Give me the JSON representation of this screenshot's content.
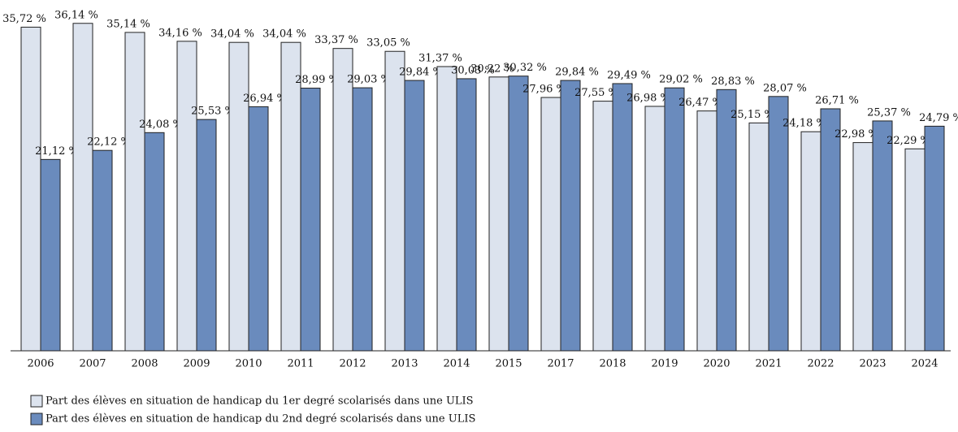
{
  "chart_data": {
    "type": "bar",
    "categories": [
      "2006",
      "2007",
      "2008",
      "2009",
      "2010",
      "2011",
      "2012",
      "2013",
      "2014",
      "2015",
      "2017",
      "2018",
      "2019",
      "2020",
      "2021",
      "2022",
      "2023",
      "2024"
    ],
    "series": [
      {
        "name": "Part des élèves en situation de handicap du 1er degré scolarisés dans une ULIS",
        "color": "#dce3ee",
        "values": [
          35.72,
          36.14,
          35.14,
          34.16,
          34.04,
          34.04,
          33.37,
          33.05,
          31.37,
          30.22,
          27.96,
          27.55,
          26.98,
          26.47,
          25.15,
          24.18,
          22.98,
          22.29
        ],
        "value_labels": [
          "35,72 %",
          "36,14 %",
          "35,14 %",
          "34,16 %",
          "34,04 %",
          "34,04 %",
          "33,37 %",
          "33,05 %",
          "31,37 %",
          "30,22 %",
          "27,96 %",
          "27,55 %",
          "26,98 %",
          "26,47 %",
          "25,15 %",
          "24,18 %",
          "22,98 %",
          "22,29 %"
        ]
      },
      {
        "name": "Part des élèves en situation de handicap du 2nd degré scolarisés dans une ULIS",
        "color": "#6a8bbd",
        "values": [
          21.12,
          22.12,
          24.08,
          25.53,
          26.94,
          28.99,
          29.03,
          29.84,
          30.03,
          30.32,
          29.84,
          29.49,
          29.02,
          28.83,
          28.07,
          26.71,
          25.37,
          24.79
        ],
        "value_labels": [
          "21,12 %",
          "22,12 %",
          "24,08 %",
          "25,53 %",
          "26,94 %",
          "28,99 %",
          "29,03 %",
          "29,84 %",
          "30,03 %",
          "30,32 %",
          "29,84 %",
          "29,49 %",
          "29,02 %",
          "28,83 %",
          "28,07 %",
          "26,71 %",
          "25,37 %",
          "24,79 %"
        ]
      }
    ],
    "ylim": [
      0,
      38
    ],
    "legend": "bottom-left"
  }
}
